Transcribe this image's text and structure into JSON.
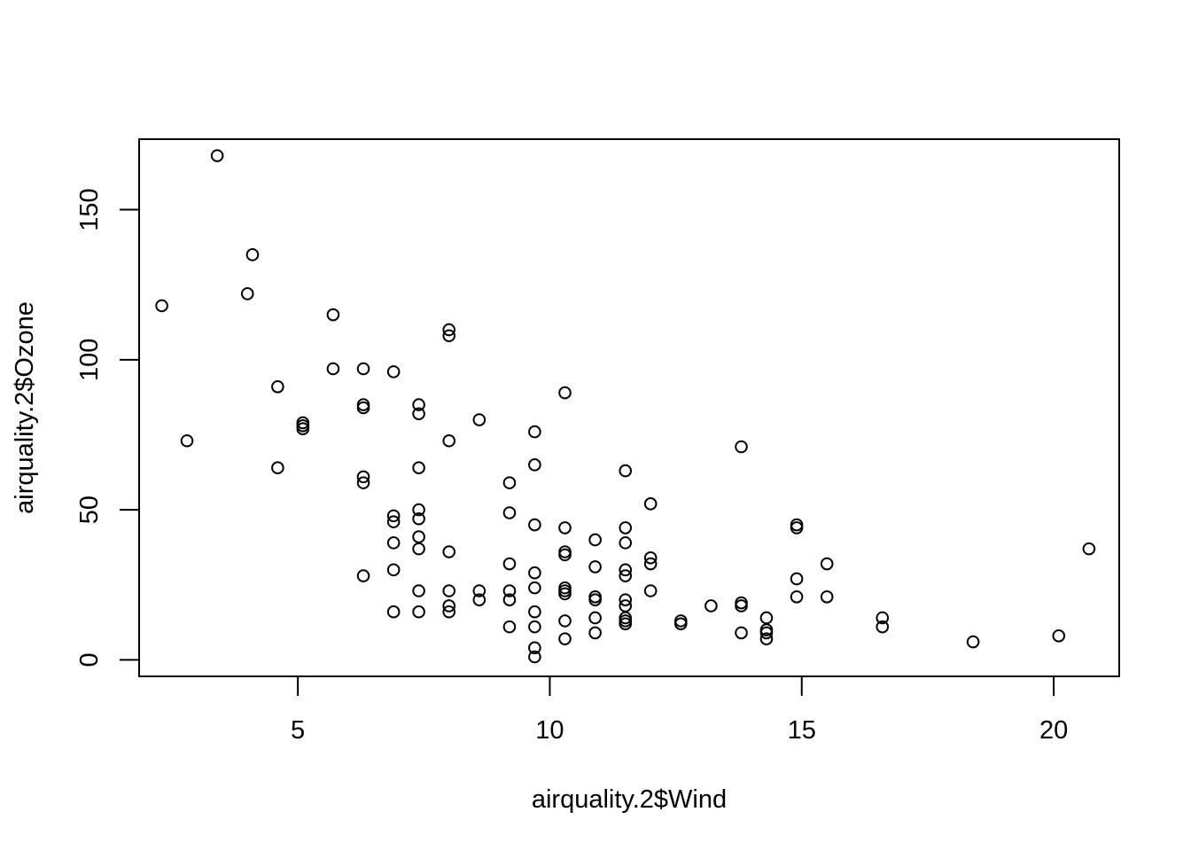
{
  "chart_data": {
    "type": "scatter",
    "xlabel": "airquality.2$Wind",
    "ylabel": "airquality.2$Ozone",
    "xlim": [
      1.85,
      21.3
    ],
    "ylim": [
      -5.5,
      173.5
    ],
    "xticks": [
      5,
      10,
      15,
      20
    ],
    "yticks": [
      0,
      50,
      100,
      150
    ],
    "marker": "open-circle",
    "marker_color": "#000000",
    "points": [
      [
        2.3,
        118
      ],
      [
        2.8,
        73
      ],
      [
        3.4,
        168
      ],
      [
        4.0,
        122
      ],
      [
        4.1,
        135
      ],
      [
        4.6,
        91
      ],
      [
        4.6,
        64
      ],
      [
        5.1,
        79
      ],
      [
        5.1,
        78
      ],
      [
        5.1,
        77
      ],
      [
        5.7,
        115
      ],
      [
        5.7,
        97
      ],
      [
        6.3,
        97
      ],
      [
        6.3,
        85
      ],
      [
        6.3,
        84
      ],
      [
        6.3,
        61
      ],
      [
        6.3,
        59
      ],
      [
        6.3,
        28
      ],
      [
        6.9,
        96
      ],
      [
        6.9,
        48
      ],
      [
        6.9,
        46
      ],
      [
        6.9,
        39
      ],
      [
        6.9,
        30
      ],
      [
        6.9,
        16
      ],
      [
        7.4,
        85
      ],
      [
        7.4,
        82
      ],
      [
        7.4,
        64
      ],
      [
        7.4,
        50
      ],
      [
        7.4,
        47
      ],
      [
        7.4,
        41
      ],
      [
        7.4,
        37
      ],
      [
        7.4,
        23
      ],
      [
        7.4,
        16
      ],
      [
        8.0,
        110
      ],
      [
        8.0,
        108
      ],
      [
        8.0,
        73
      ],
      [
        8.0,
        36
      ],
      [
        8.0,
        23
      ],
      [
        8.0,
        18
      ],
      [
        8.0,
        16
      ],
      [
        8.6,
        80
      ],
      [
        8.6,
        23
      ],
      [
        8.6,
        20
      ],
      [
        9.2,
        59
      ],
      [
        9.2,
        49
      ],
      [
        9.2,
        32
      ],
      [
        9.2,
        23
      ],
      [
        9.2,
        20
      ],
      [
        9.2,
        11
      ],
      [
        9.7,
        76
      ],
      [
        9.7,
        65
      ],
      [
        9.7,
        45
      ],
      [
        9.7,
        29
      ],
      [
        9.7,
        24
      ],
      [
        9.7,
        16
      ],
      [
        9.7,
        11
      ],
      [
        9.7,
        4
      ],
      [
        9.7,
        1
      ],
      [
        10.3,
        89
      ],
      [
        10.3,
        44
      ],
      [
        10.3,
        36
      ],
      [
        10.3,
        35
      ],
      [
        10.3,
        24
      ],
      [
        10.3,
        23
      ],
      [
        10.3,
        22
      ],
      [
        10.3,
        13
      ],
      [
        10.3,
        7
      ],
      [
        10.9,
        40
      ],
      [
        10.9,
        31
      ],
      [
        10.9,
        21
      ],
      [
        10.9,
        20
      ],
      [
        10.9,
        14
      ],
      [
        10.9,
        9
      ],
      [
        11.5,
        63
      ],
      [
        11.5,
        44
      ],
      [
        11.5,
        39
      ],
      [
        11.5,
        30
      ],
      [
        11.5,
        28
      ],
      [
        11.5,
        20
      ],
      [
        11.5,
        18
      ],
      [
        11.5,
        14
      ],
      [
        11.5,
        13
      ],
      [
        11.5,
        12
      ],
      [
        12.0,
        52
      ],
      [
        12.0,
        34
      ],
      [
        12.0,
        32
      ],
      [
        12.0,
        23
      ],
      [
        12.6,
        13
      ],
      [
        12.6,
        12
      ],
      [
        13.2,
        18
      ],
      [
        13.8,
        71
      ],
      [
        13.8,
        19
      ],
      [
        13.8,
        18
      ],
      [
        13.8,
        9
      ],
      [
        14.3,
        14
      ],
      [
        14.3,
        10
      ],
      [
        14.3,
        9
      ],
      [
        14.3,
        7
      ],
      [
        14.9,
        45
      ],
      [
        14.9,
        44
      ],
      [
        14.9,
        27
      ],
      [
        14.9,
        21
      ],
      [
        15.5,
        32
      ],
      [
        15.5,
        21
      ],
      [
        16.6,
        14
      ],
      [
        16.6,
        11
      ],
      [
        18.4,
        6
      ],
      [
        20.1,
        8
      ],
      [
        20.7,
        37
      ]
    ]
  }
}
